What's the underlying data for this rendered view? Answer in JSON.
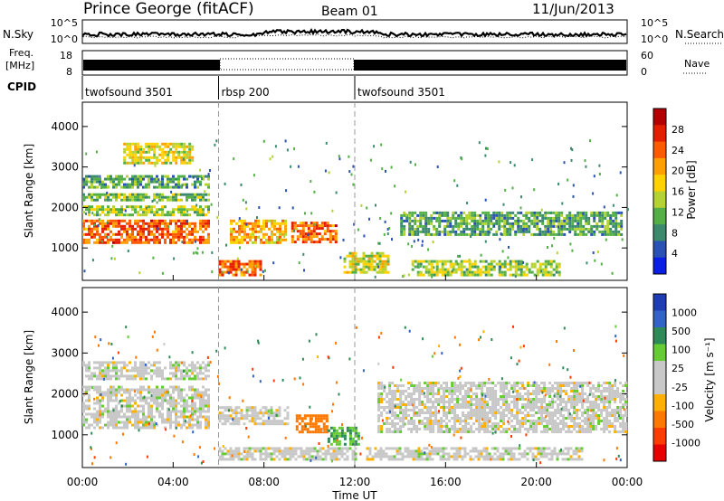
{
  "header": {
    "station": "Prince George (fitACF)",
    "beam": "Beam 01",
    "date": "11/Jun/2013"
  },
  "nsky_panel": {
    "left_label": "N.Sky",
    "left_ticks": [
      "10^5",
      "10^0"
    ],
    "right_label": "N.Search",
    "right_ticks": [
      "10^5",
      "10^0"
    ]
  },
  "freq_panel": {
    "left_label_top": "Freq.",
    "left_label_bottom": "[MHz]",
    "left_ticks": [
      "18",
      "8"
    ],
    "right_label": "Nave",
    "right_ticks": [
      "60",
      "0"
    ]
  },
  "cpid": {
    "label": "CPID",
    "segments": [
      {
        "name": "twofsound 3501",
        "start_hour": 0,
        "end_hour": 6
      },
      {
        "name": "rbsp 200",
        "start_hour": 6,
        "end_hour": 12
      },
      {
        "name": "twofsound 3501",
        "start_hour": 12,
        "end_hour": 24
      }
    ]
  },
  "x_axis": {
    "label": "Time UT",
    "ticks": [
      "00:00",
      "04:00",
      "08:00",
      "12:00",
      "16:00",
      "20:00",
      "00:00"
    ]
  },
  "power_panel": {
    "ylabel": "Slant Range [km]",
    "y_ticks": [
      "1000",
      "2000",
      "3000",
      "4000"
    ],
    "colorbar_label": "Power [dB]",
    "colorbar_ticks": [
      "4",
      "8",
      "12",
      "16",
      "20",
      "24",
      "28"
    ],
    "colors": [
      "#0a1ee6",
      "#2a52b4",
      "#3c8a6e",
      "#54b046",
      "#b4d232",
      "#ffd200",
      "#ffa000",
      "#ff5a00",
      "#e61e00",
      "#b40000"
    ]
  },
  "velocity_panel": {
    "ylabel": "Slant Range [km]",
    "y_ticks": [
      "1000",
      "2000",
      "3000",
      "4000"
    ],
    "colorbar_label": "Velocity [m s⁻¹]",
    "colorbar_ticks": [
      "1000",
      "500",
      "100",
      "25",
      "-25",
      "-100",
      "-500",
      "-1000"
    ],
    "colors": [
      "#1e3cb4",
      "#3264c8",
      "#2e8b57",
      "#66cc33",
      "#c8c8c8",
      "#c8c8c8",
      "#ffb000",
      "#ff7800",
      "#ff3c00",
      "#e60000"
    ]
  },
  "chart_data": {
    "type": "heatmap",
    "x_unit": "hours UT",
    "xlim": [
      0,
      24
    ],
    "ylim_km": [
      200,
      4600
    ],
    "power_bands": [
      {
        "t0": 0.0,
        "t1": 5.6,
        "r0": 1150,
        "r1": 1700,
        "power_db": 24
      },
      {
        "t0": 0.0,
        "t1": 5.6,
        "r0": 1800,
        "r1": 2050,
        "power_db": 14
      },
      {
        "t0": 0.0,
        "t1": 5.6,
        "r0": 2150,
        "r1": 2350,
        "power_db": 12
      },
      {
        "t0": 0.0,
        "t1": 5.6,
        "r0": 2500,
        "r1": 2800,
        "power_db": 10
      },
      {
        "t0": 1.8,
        "t1": 4.8,
        "r0": 3100,
        "r1": 3600,
        "power_db": 16
      },
      {
        "t0": 6.0,
        "t1": 7.8,
        "r0": 350,
        "r1": 700,
        "power_db": 24
      },
      {
        "t0": 6.5,
        "t1": 9.0,
        "r0": 1100,
        "r1": 1700,
        "power_db": 20
      },
      {
        "t0": 9.2,
        "t1": 11.2,
        "r0": 1150,
        "r1": 1650,
        "power_db": 24
      },
      {
        "t0": 11.5,
        "t1": 13.5,
        "r0": 400,
        "r1": 900,
        "power_db": 16
      },
      {
        "t0": 14.0,
        "t1": 23.8,
        "r0": 1300,
        "r1": 1900,
        "power_db": 10
      },
      {
        "t0": 14.5,
        "t1": 21.0,
        "r0": 350,
        "r1": 700,
        "power_db": 14
      }
    ],
    "velocity_bands": [
      {
        "t0": 0.0,
        "t1": 5.6,
        "r0": 1200,
        "r1": 2200,
        "velocity": 0
      },
      {
        "t0": 0.0,
        "t1": 5.6,
        "r0": 2400,
        "r1": 2800,
        "velocity": 0
      },
      {
        "t0": 6.0,
        "t1": 9.0,
        "r0": 1300,
        "r1": 1700,
        "velocity": 0
      },
      {
        "t0": 9.4,
        "t1": 10.8,
        "r0": 1100,
        "r1": 1500,
        "velocity": -200
      },
      {
        "t0": 10.8,
        "t1": 12.2,
        "r0": 800,
        "r1": 1200,
        "velocity": 100
      },
      {
        "t0": 6.0,
        "t1": 12.0,
        "r0": 400,
        "r1": 700,
        "velocity": 0
      },
      {
        "t0": 13.0,
        "t1": 24.0,
        "r0": 1100,
        "r1": 2300,
        "velocity": 0
      },
      {
        "t0": 12.5,
        "t1": 22.0,
        "r0": 400,
        "r1": 700,
        "velocity": 0
      }
    ]
  }
}
